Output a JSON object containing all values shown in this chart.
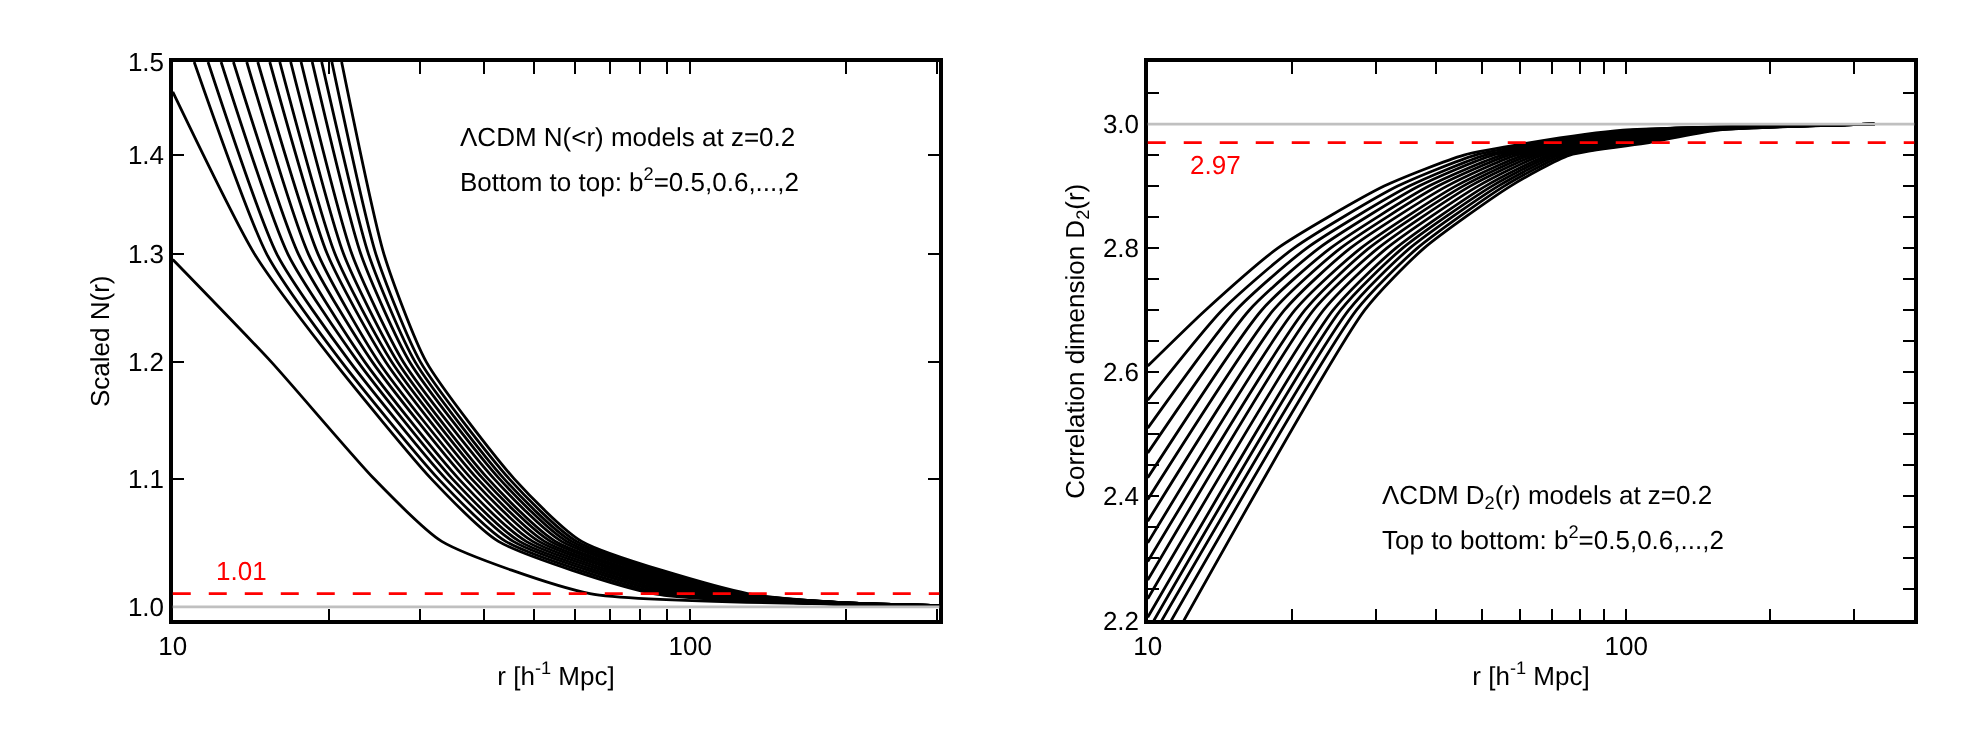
{
  "chart_data": [
    {
      "type": "line",
      "xlabel": "r [h$^{-1}$ Mpc]",
      "ylabel": "Scaled N(r)",
      "log": "xy",
      "line_style": "solid",
      "marker": "none",
      "xlim": [
        10,
        303
      ],
      "xticks": [
        10,
        {
          "value": 20,
          "label": null
        },
        {
          "value": 30,
          "label": null
        },
        {
          "value": 40,
          "label": null
        },
        {
          "value": 50,
          "label": null
        },
        {
          "value": 60,
          "label": null
        },
        {
          "value": 70,
          "label": null
        },
        {
          "value": 80,
          "label": null
        },
        {
          "value": 90,
          "label": null
        },
        100,
        {
          "value": 200,
          "label": null
        },
        {
          "value": 300,
          "label": null
        }
      ],
      "ylim": [
        0.99,
        1.5
      ],
      "yticks": [
        {
          "value": 1.0,
          "label": "1.0"
        },
        1.1,
        1.2,
        1.3,
        1.4,
        1.5
      ],
      "annotations": [
        "ΛCDM N(<r) models at z=0.2",
        "Bottom to top: b$^{2}$=0.5,0.6,...,2"
      ],
      "ref_lines": [
        {
          "axis": "y",
          "value": 1.0,
          "color": "#c0c0c0",
          "line_style": "solid"
        },
        {
          "axis": "y",
          "value": 1.01,
          "label": "1.01",
          "color": "#ff0000",
          "line_style": "dashed"
        }
      ],
      "series": [
        {
          "color": "#000000",
          "x": [
            10,
            15.5,
            24.5,
            33.1,
            64.0,
            200,
            303
          ],
          "values": [
            1.295,
            1.2,
            1.1,
            1.05,
            1.01,
            1.002,
            1.001
          ]
        },
        {
          "color": "#000000",
          "x": [
            10,
            14.4,
            20.5,
            31.6,
            42.6,
            84.9,
            200,
            303
          ],
          "values": [
            1.467,
            1.3,
            1.2,
            1.1,
            1.05,
            1.01,
            1.002,
            1.001
          ]
        },
        {
          "color": "#000000",
          "x": [
            11.0,
            15.2,
            21.2,
            32.6,
            44.0,
            88.1,
            200,
            303
          ],
          "values": [
            1.5,
            1.3,
            1.2,
            1.1,
            1.05,
            1.01,
            1.002,
            1.001
          ]
        },
        {
          "color": "#000000",
          "x": [
            11.7,
            15.9,
            22.0,
            33.7,
            45.5,
            91.4,
            200,
            303
          ],
          "values": [
            1.5,
            1.3,
            1.2,
            1.1,
            1.05,
            1.01,
            1.002,
            1.001
          ]
        },
        {
          "color": "#000000",
          "x": [
            12.4,
            16.7,
            22.8,
            34.7,
            46.8,
            94.6,
            200,
            303
          ],
          "values": [
            1.5,
            1.3,
            1.2,
            1.1,
            1.05,
            1.01,
            1.002,
            1.001
          ]
        },
        {
          "color": "#000000",
          "x": [
            13.1,
            17.5,
            23.5,
            35.7,
            48.2,
            97.9,
            200,
            303
          ],
          "values": [
            1.5,
            1.3,
            1.2,
            1.1,
            1.05,
            1.01,
            1.002,
            1.001
          ]
        },
        {
          "color": "#000000",
          "x": [
            13.9,
            18.3,
            24.3,
            36.8,
            49.6,
            100.9,
            200,
            303
          ],
          "values": [
            1.5,
            1.3,
            1.2,
            1.1,
            1.05,
            1.01,
            1.002,
            1.001
          ]
        },
        {
          "color": "#000000",
          "x": [
            14.6,
            19.1,
            25.0,
            37.8,
            51.0,
            104.2,
            200,
            303
          ],
          "values": [
            1.5,
            1.3,
            1.2,
            1.1,
            1.05,
            1.01,
            1.002,
            1.001
          ]
        },
        {
          "color": "#000000",
          "x": [
            15.4,
            19.9,
            25.8,
            38.8,
            52.3,
            107.2,
            200,
            303
          ],
          "values": [
            1.5,
            1.3,
            1.2,
            1.1,
            1.05,
            1.01,
            1.003,
            1.001
          ]
        },
        {
          "color": "#000000",
          "x": [
            16.1,
            20.6,
            26.5,
            39.8,
            53.7,
            110.4,
            200,
            303
          ],
          "values": [
            1.5,
            1.3,
            1.2,
            1.1,
            1.05,
            1.01,
            1.003,
            1.001
          ]
        },
        {
          "color": "#000000",
          "x": [
            16.9,
            21.4,
            27.2,
            40.7,
            54.9,
            113.5,
            200,
            303
          ],
          "values": [
            1.5,
            1.3,
            1.2,
            1.1,
            1.05,
            1.01,
            1.003,
            1.001
          ]
        },
        {
          "color": "#000000",
          "x": [
            17.7,
            22.2,
            27.9,
            41.8,
            56.4,
            116.4,
            200,
            303
          ],
          "values": [
            1.5,
            1.3,
            1.2,
            1.1,
            1.05,
            1.01,
            1.003,
            1.001
          ]
        },
        {
          "color": "#000000",
          "x": [
            18.6,
            23.1,
            28.7,
            42.8,
            57.7,
            119.4,
            200,
            303
          ],
          "values": [
            1.5,
            1.3,
            1.2,
            1.1,
            1.05,
            1.01,
            1.003,
            1.001
          ]
        },
        {
          "color": "#000000",
          "x": [
            19.4,
            23.9,
            29.4,
            43.7,
            59.0,
            122.7,
            200,
            303
          ],
          "values": [
            1.5,
            1.3,
            1.2,
            1.1,
            1.05,
            1.01,
            1.003,
            1.001
          ]
        },
        {
          "color": "#000000",
          "x": [
            20.3,
            24.7,
            30.1,
            44.7,
            60.3,
            125.9,
            200,
            303
          ],
          "values": [
            1.5,
            1.3,
            1.2,
            1.1,
            1.05,
            1.01,
            1.003,
            1.001
          ]
        },
        {
          "color": "#000000",
          "x": [
            21.2,
            25.6,
            30.9,
            45.7,
            61.7,
            129.1,
            200,
            303
          ],
          "values": [
            1.5,
            1.3,
            1.2,
            1.1,
            1.05,
            1.01,
            1.003,
            1.001
          ]
        }
      ]
    },
    {
      "type": "line",
      "xlabel": "r [h$^{-1}$ Mpc]",
      "ylabel": "Correlation dimension D$_{2}$(r)",
      "log": "x",
      "line_style": "solid",
      "marker": "none",
      "xlim": [
        10,
        400
      ],
      "xticks": [
        10,
        {
          "value": 20,
          "label": null
        },
        {
          "value": 30,
          "label": null
        },
        {
          "value": 40,
          "label": null
        },
        {
          "value": 50,
          "label": null
        },
        {
          "value": 60,
          "label": null
        },
        {
          "value": 70,
          "label": null
        },
        {
          "value": 80,
          "label": null
        },
        {
          "value": 90,
          "label": null
        },
        100,
        {
          "value": 200,
          "label": null
        },
        {
          "value": 300,
          "label": null
        },
        {
          "value": 400,
          "label": null
        }
      ],
      "ylim": [
        2.2,
        3.1
      ],
      "yticks": [
        2.2,
        {
          "value": 2.25,
          "label": null
        },
        {
          "value": 2.3,
          "label": null
        },
        {
          "value": 2.35,
          "label": null
        },
        2.4,
        {
          "value": 2.45,
          "label": null
        },
        {
          "value": 2.5,
          "label": null
        },
        {
          "value": 2.55,
          "label": null
        },
        2.6,
        {
          "value": 2.65,
          "label": null
        },
        {
          "value": 2.7,
          "label": null
        },
        {
          "value": 2.75,
          "label": null
        },
        2.8,
        {
          "value": 2.85,
          "label": null
        },
        {
          "value": 2.9,
          "label": null
        },
        {
          "value": 2.95,
          "label": null
        },
        {
          "value": 3.0,
          "label": "3.0"
        },
        {
          "value": 3.05,
          "label": null
        },
        {
          "value": 3.1,
          "label": null
        }
      ],
      "annotations": [
        "ΛCDM D$_{2}$(r) models at z=0.2",
        "Top to bottom: b$^{2}$=0.5,0.6,...,2"
      ],
      "ref_lines": [
        {
          "axis": "y",
          "value": 3.0,
          "color": "#c0c0c0",
          "line_style": "solid"
        },
        {
          "axis": "y",
          "value": 2.97,
          "label": "2.97",
          "color": "#ff0000",
          "line_style": "dashed"
        }
      ],
      "series": [
        {
          "color": "#000000",
          "x": [
            10,
            13.2,
            18.7,
            31.2,
            45.8,
            63.1,
            98.4,
            330
          ],
          "values": [
            2.61,
            2.7,
            2.8,
            2.9,
            2.95,
            2.97,
            2.99,
            3.0
          ]
        },
        {
          "color": "#000000",
          "x": [
            10,
            14.3,
            20.2,
            33.3,
            48.4,
            67.1,
            103.3,
            330
          ],
          "values": [
            2.555,
            2.7,
            2.8,
            2.9,
            2.95,
            2.97,
            2.99,
            3.0
          ]
        },
        {
          "color": "#000000",
          "x": [
            10,
            15.3,
            21.5,
            35.2,
            50.7,
            70.6,
            107.4,
            330
          ],
          "values": [
            2.51,
            2.7,
            2.8,
            2.9,
            2.95,
            2.97,
            2.99,
            3.0
          ]
        },
        {
          "color": "#000000",
          "x": [
            10,
            16.3,
            22.8,
            36.9,
            52.7,
            74.0,
            111.4,
            330
          ],
          "values": [
            2.47,
            2.7,
            2.8,
            2.9,
            2.95,
            2.97,
            2.99,
            3.0
          ]
        },
        {
          "color": "#000000",
          "x": [
            10,
            17.3,
            24.1,
            38.7,
            55.0,
            77.3,
            115.3,
            330
          ],
          "values": [
            2.43,
            2.7,
            2.8,
            2.9,
            2.95,
            2.97,
            2.99,
            3.0
          ]
        },
        {
          "color": "#000000",
          "x": [
            10,
            18.3,
            25.3,
            40.4,
            56.9,
            80.5,
            119.1,
            330
          ],
          "values": [
            2.395,
            2.7,
            2.8,
            2.9,
            2.95,
            2.97,
            2.99,
            3.0
          ]
        },
        {
          "color": "#000000",
          "x": [
            10,
            19.3,
            26.5,
            42.2,
            58.9,
            83.8,
            122.7,
            330
          ],
          "values": [
            2.36,
            2.7,
            2.8,
            2.9,
            2.95,
            2.97,
            2.99,
            3.0
          ]
        },
        {
          "color": "#000000",
          "x": [
            10,
            20.3,
            27.9,
            44.0,
            61.1,
            87.1,
            126.5,
            330
          ],
          "values": [
            2.325,
            2.7,
            2.8,
            2.9,
            2.95,
            2.97,
            2.99,
            3.0
          ]
        },
        {
          "color": "#000000",
          "x": [
            10,
            21.3,
            29.0,
            45.6,
            63.0,
            90.2,
            130.0,
            330
          ],
          "values": [
            2.295,
            2.7,
            2.8,
            2.9,
            2.95,
            2.97,
            2.99,
            3.0
          ]
        },
        {
          "color": "#000000",
          "x": [
            10,
            22.2,
            30.3,
            47.2,
            64.9,
            93.1,
            133.7,
            330
          ],
          "values": [
            2.265,
            2.7,
            2.8,
            2.9,
            2.95,
            2.97,
            2.99,
            3.0
          ]
        },
        {
          "color": "#000000",
          "x": [
            10,
            23.3,
            31.6,
            49.0,
            66.8,
            96.4,
            137.1,
            330
          ],
          "values": [
            2.235,
            2.7,
            2.8,
            2.9,
            2.95,
            2.97,
            2.99,
            3.0
          ]
        },
        {
          "color": "#000000",
          "x": [
            10,
            24.4,
            33.0,
            50.8,
            68.9,
            99.8,
            140.9,
            330
          ],
          "values": [
            2.205,
            2.7,
            2.8,
            2.9,
            2.95,
            2.97,
            2.99,
            3.0
          ]
        },
        {
          "color": "#000000",
          "x": [
            10.3,
            25.3,
            34.1,
            52.4,
            70.6,
            102.6,
            143.9,
            330
          ],
          "values": [
            2.2,
            2.7,
            2.8,
            2.9,
            2.95,
            2.97,
            2.99,
            3.0
          ]
        },
        {
          "color": "#000000",
          "x": [
            10.7,
            26.3,
            35.3,
            54.0,
            72.4,
            105.4,
            147.2,
            330
          ],
          "values": [
            2.2,
            2.7,
            2.8,
            2.9,
            2.95,
            2.97,
            2.99,
            3.0
          ]
        },
        {
          "color": "#000000",
          "x": [
            11.2,
            27.3,
            36.6,
            55.6,
            74.3,
            108.6,
            150.3,
            330
          ],
          "values": [
            2.2,
            2.7,
            2.8,
            2.9,
            2.95,
            2.97,
            2.99,
            3.0
          ]
        },
        {
          "color": "#000000",
          "x": [
            11.9,
            28.4,
            37.8,
            57.3,
            76.2,
            111.7,
            153.8,
            330
          ],
          "values": [
            2.2,
            2.7,
            2.8,
            2.9,
            2.95,
            2.97,
            2.99,
            3.0
          ]
        }
      ]
    }
  ]
}
